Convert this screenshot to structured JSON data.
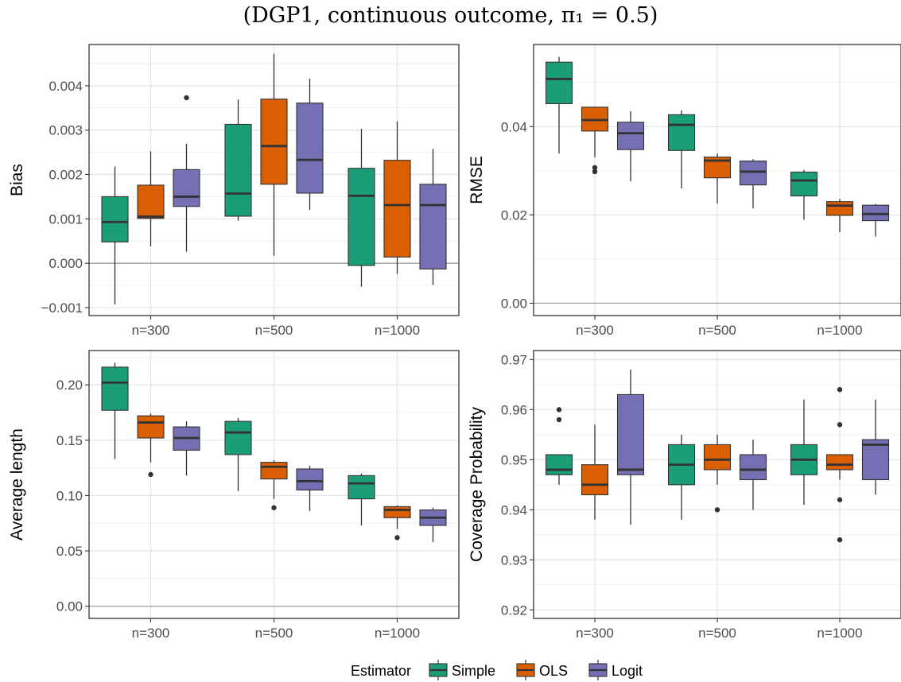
{
  "title": "(DGP1, continuous outcome, π₁ = 0.5)",
  "legend": {
    "title": "Estimator",
    "entries": [
      {
        "name": "Simple",
        "color": "#1b9e77"
      },
      {
        "name": "OLS",
        "color": "#d95f02"
      },
      {
        "name": "Logit",
        "color": "#7570b3"
      }
    ]
  },
  "chart_data": [
    {
      "type": "box",
      "ylabel": "Bias",
      "categories": [
        "n=300",
        "n=500",
        "n=1000"
      ],
      "yticks": [
        "−0.001",
        "0.000",
        "0.001",
        "0.002",
        "0.003",
        "0.004"
      ],
      "ytick_values": [
        -0.001,
        0,
        0.001,
        0.002,
        0.003,
        0.004
      ],
      "ylim": [
        -0.00118,
        0.00493
      ],
      "hline": 0,
      "series": [
        {
          "name": "Simple",
          "boxes": [
            {
              "min": -0.00093,
              "q1": 0.00048,
              "median": 0.00093,
              "q3": 0.0015,
              "max": 0.00218,
              "outliers": []
            },
            {
              "min": 0.00096,
              "q1": 0.00106,
              "median": 0.00157,
              "q3": 0.00313,
              "max": 0.00369,
              "outliers": []
            },
            {
              "min": -0.00053,
              "q1": -5e-05,
              "median": 0.00152,
              "q3": 0.00214,
              "max": 0.00303,
              "outliers": []
            }
          ]
        },
        {
          "name": "OLS",
          "boxes": [
            {
              "min": 0.00038,
              "q1": 0.00101,
              "median": 0.00105,
              "q3": 0.00176,
              "max": 0.00252,
              "outliers": []
            },
            {
              "min": 0.00017,
              "q1": 0.00178,
              "median": 0.00264,
              "q3": 0.0037,
              "max": 0.00472,
              "outliers": []
            },
            {
              "min": -0.00024,
              "q1": 0.00014,
              "median": 0.00131,
              "q3": 0.00232,
              "max": 0.0032,
              "outliers": []
            }
          ]
        },
        {
          "name": "Logit",
          "boxes": [
            {
              "min": 0.00026,
              "q1": 0.00128,
              "median": 0.0015,
              "q3": 0.00211,
              "max": 0.00269,
              "outliers": [
                0.00373
              ]
            },
            {
              "min": 0.0012,
              "q1": 0.00158,
              "median": 0.00233,
              "q3": 0.00361,
              "max": 0.00416,
              "outliers": []
            },
            {
              "min": -0.00049,
              "q1": -0.00013,
              "median": 0.00131,
              "q3": 0.00178,
              "max": 0.00258,
              "outliers": []
            }
          ]
        }
      ]
    },
    {
      "type": "box",
      "ylabel": "RMSE",
      "categories": [
        "n=300",
        "n=500",
        "n=1000"
      ],
      "yticks": [
        "0.00",
        "0.02",
        "0.04"
      ],
      "ytick_values": [
        0,
        0.02,
        0.04
      ],
      "ylim": [
        -0.0028,
        0.0586
      ],
      "hline": 0,
      "series": [
        {
          "name": "Simple",
          "boxes": [
            {
              "min": 0.0339,
              "q1": 0.0452,
              "median": 0.0508,
              "q3": 0.0546,
              "max": 0.0558,
              "outliers": []
            },
            {
              "min": 0.026,
              "q1": 0.0346,
              "median": 0.0404,
              "q3": 0.0427,
              "max": 0.0437,
              "outliers": []
            },
            {
              "min": 0.0189,
              "q1": 0.0243,
              "median": 0.0278,
              "q3": 0.0297,
              "max": 0.0302,
              "outliers": []
            }
          ]
        },
        {
          "name": "OLS",
          "boxes": [
            {
              "min": 0.0331,
              "q1": 0.039,
              "median": 0.0415,
              "q3": 0.0444,
              "max": 0.0444,
              "outliers": [
                0.0307,
                0.0298
              ]
            },
            {
              "min": 0.0226,
              "q1": 0.0284,
              "median": 0.0323,
              "q3": 0.0331,
              "max": 0.0339,
              "outliers": []
            },
            {
              "min": 0.0161,
              "q1": 0.0199,
              "median": 0.0221,
              "q3": 0.023,
              "max": 0.0236,
              "outliers": []
            }
          ]
        },
        {
          "name": "Logit",
          "boxes": [
            {
              "min": 0.0276,
              "q1": 0.0348,
              "median": 0.0385,
              "q3": 0.041,
              "max": 0.0435,
              "outliers": []
            },
            {
              "min": 0.0215,
              "q1": 0.0268,
              "median": 0.0298,
              "q3": 0.0322,
              "max": 0.0326,
              "outliers": []
            },
            {
              "min": 0.0151,
              "q1": 0.0187,
              "median": 0.0202,
              "q3": 0.0222,
              "max": 0.0225,
              "outliers": []
            }
          ]
        }
      ]
    },
    {
      "type": "box",
      "ylabel": "Average length",
      "categories": [
        "n=300",
        "n=500",
        "n=1000"
      ],
      "yticks": [
        "0.00",
        "0.05",
        "0.10",
        "0.15",
        "0.20"
      ],
      "ytick_values": [
        0,
        0.05,
        0.1,
        0.15,
        0.2
      ],
      "ylim": [
        -0.011,
        0.231
      ],
      "hline": 0,
      "series": [
        {
          "name": "Simple",
          "boxes": [
            {
              "min": 0.133,
              "q1": 0.177,
              "median": 0.202,
              "q3": 0.216,
              "max": 0.22,
              "outliers": []
            },
            {
              "min": 0.104,
              "q1": 0.137,
              "median": 0.157,
              "q3": 0.167,
              "max": 0.17,
              "outliers": []
            },
            {
              "min": 0.073,
              "q1": 0.097,
              "median": 0.111,
              "q3": 0.118,
              "max": 0.12,
              "outliers": []
            }
          ]
        },
        {
          "name": "OLS",
          "boxes": [
            {
              "min": 0.13,
              "q1": 0.152,
              "median": 0.166,
              "q3": 0.172,
              "max": 0.174,
              "outliers": [
                0.119
              ]
            },
            {
              "min": 0.097,
              "q1": 0.115,
              "median": 0.126,
              "q3": 0.13,
              "max": 0.132,
              "outliers": [
                0.089
              ]
            },
            {
              "min": 0.07,
              "q1": 0.08,
              "median": 0.087,
              "q3": 0.09,
              "max": 0.091,
              "outliers": [
                0.062
              ]
            }
          ]
        },
        {
          "name": "Logit",
          "boxes": [
            {
              "min": 0.118,
              "q1": 0.141,
              "median": 0.152,
              "q3": 0.162,
              "max": 0.167,
              "outliers": []
            },
            {
              "min": 0.086,
              "q1": 0.105,
              "median": 0.113,
              "q3": 0.124,
              "max": 0.127,
              "outliers": []
            },
            {
              "min": 0.058,
              "q1": 0.073,
              "median": 0.08,
              "q3": 0.087,
              "max": 0.089,
              "outliers": []
            }
          ]
        }
      ]
    },
    {
      "type": "box",
      "ylabel": "Coverage Probability",
      "categories": [
        "n=300",
        "n=500",
        "n=1000"
      ],
      "yticks": [
        "0.92",
        "0.93",
        "0.94",
        "0.95",
        "0.96",
        "0.97"
      ],
      "ytick_values": [
        0.92,
        0.93,
        0.94,
        0.95,
        0.96,
        0.97
      ],
      "ylim": [
        0.9183,
        0.9718
      ],
      "hline": null,
      "series": [
        {
          "name": "Simple",
          "boxes": [
            {
              "min": 0.945,
              "q1": 0.947,
              "median": 0.948,
              "q3": 0.951,
              "max": 0.951,
              "outliers": [
                0.96,
                0.958
              ]
            },
            {
              "min": 0.938,
              "q1": 0.945,
              "median": 0.949,
              "q3": 0.953,
              "max": 0.955,
              "outliers": []
            },
            {
              "min": 0.941,
              "q1": 0.947,
              "median": 0.95,
              "q3": 0.953,
              "max": 0.962,
              "outliers": []
            }
          ]
        },
        {
          "name": "OLS",
          "boxes": [
            {
              "min": 0.938,
              "q1": 0.943,
              "median": 0.945,
              "q3": 0.949,
              "max": 0.957,
              "outliers": []
            },
            {
              "min": 0.945,
              "q1": 0.948,
              "median": 0.95,
              "q3": 0.953,
              "max": 0.955,
              "outliers": [
                0.94
              ]
            },
            {
              "min": 0.946,
              "q1": 0.948,
              "median": 0.949,
              "q3": 0.951,
              "max": 0.951,
              "outliers": [
                0.964,
                0.957,
                0.942,
                0.934
              ]
            }
          ]
        },
        {
          "name": "Logit",
          "boxes": [
            {
              "min": 0.937,
              "q1": 0.947,
              "median": 0.948,
              "q3": 0.963,
              "max": 0.968,
              "outliers": []
            },
            {
              "min": 0.94,
              "q1": 0.946,
              "median": 0.948,
              "q3": 0.951,
              "max": 0.954,
              "outliers": []
            },
            {
              "min": 0.943,
              "q1": 0.946,
              "median": 0.953,
              "q3": 0.954,
              "max": 0.962,
              "outliers": []
            }
          ]
        }
      ]
    }
  ]
}
